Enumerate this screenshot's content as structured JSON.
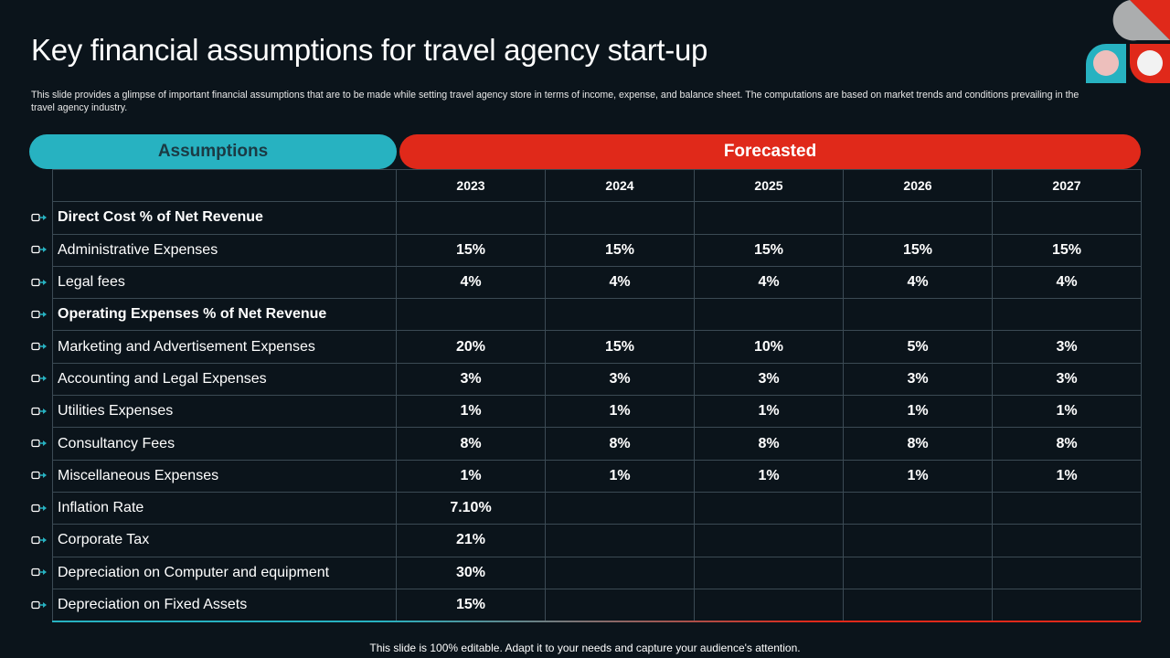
{
  "title": "Key financial assumptions for travel agency start-up",
  "subtitle": "This slide provides a glimpse of important financial assumptions that are to be made while setting travel agency store in terms of income, expense, and balance sheet. The computations are based on market trends and conditions prevailing in the travel agency industry.",
  "header": {
    "assumptions": "Assumptions",
    "forecasted": "Forecasted"
  },
  "years": [
    "2023",
    "2024",
    "2025",
    "2026",
    "2027"
  ],
  "rows": [
    {
      "label": "Direct Cost % of Net Revenue",
      "bold": true,
      "values": [
        "",
        "",
        "",
        "",
        ""
      ]
    },
    {
      "label": "Administrative Expenses",
      "bold": false,
      "values": [
        "15%",
        "15%",
        "15%",
        "15%",
        "15%"
      ]
    },
    {
      "label": "Legal fees",
      "bold": false,
      "values": [
        "4%",
        "4%",
        "4%",
        "4%",
        "4%"
      ]
    },
    {
      "label": "Operating Expenses % of Net Revenue",
      "bold": true,
      "values": [
        "",
        "",
        "",
        "",
        ""
      ]
    },
    {
      "label": "Marketing and Advertisement Expenses",
      "bold": false,
      "values": [
        "20%",
        "15%",
        "10%",
        "5%",
        "3%"
      ]
    },
    {
      "label": "Accounting and Legal Expenses",
      "bold": false,
      "values": [
        "3%",
        "3%",
        "3%",
        "3%",
        "3%"
      ]
    },
    {
      "label": "Utilities Expenses",
      "bold": false,
      "values": [
        "1%",
        "1%",
        "1%",
        "1%",
        "1%"
      ]
    },
    {
      "label": "Consultancy  Fees",
      "bold": false,
      "values": [
        "8%",
        "8%",
        "8%",
        "8%",
        "8%"
      ]
    },
    {
      "label": "Miscellaneous Expenses",
      "bold": false,
      "values": [
        "1%",
        "1%",
        "1%",
        "1%",
        "1%"
      ]
    },
    {
      "label": "Inflation  Rate",
      "bold": false,
      "values": [
        "7.10%",
        "",
        "",
        "",
        ""
      ]
    },
    {
      "label": "Corporate Tax",
      "bold": false,
      "values": [
        "21%",
        "",
        "",
        "",
        ""
      ]
    },
    {
      "label": "Depreciation on Computer and equipment",
      "bold": false,
      "values": [
        "30%",
        "",
        "",
        "",
        ""
      ]
    },
    {
      "label": "Depreciation on Fixed Assets",
      "bold": false,
      "values": [
        "15%",
        "",
        "",
        "",
        ""
      ]
    }
  ],
  "footer": "This slide is 100% editable. Adapt it to your needs and capture your audience's attention.",
  "colors": {
    "teal": "#27b2c1",
    "red": "#e0291a",
    "background": "#0b141b"
  },
  "icons": {
    "bullet": "arrow-bullet-icon",
    "logo": "decorative-logo"
  }
}
